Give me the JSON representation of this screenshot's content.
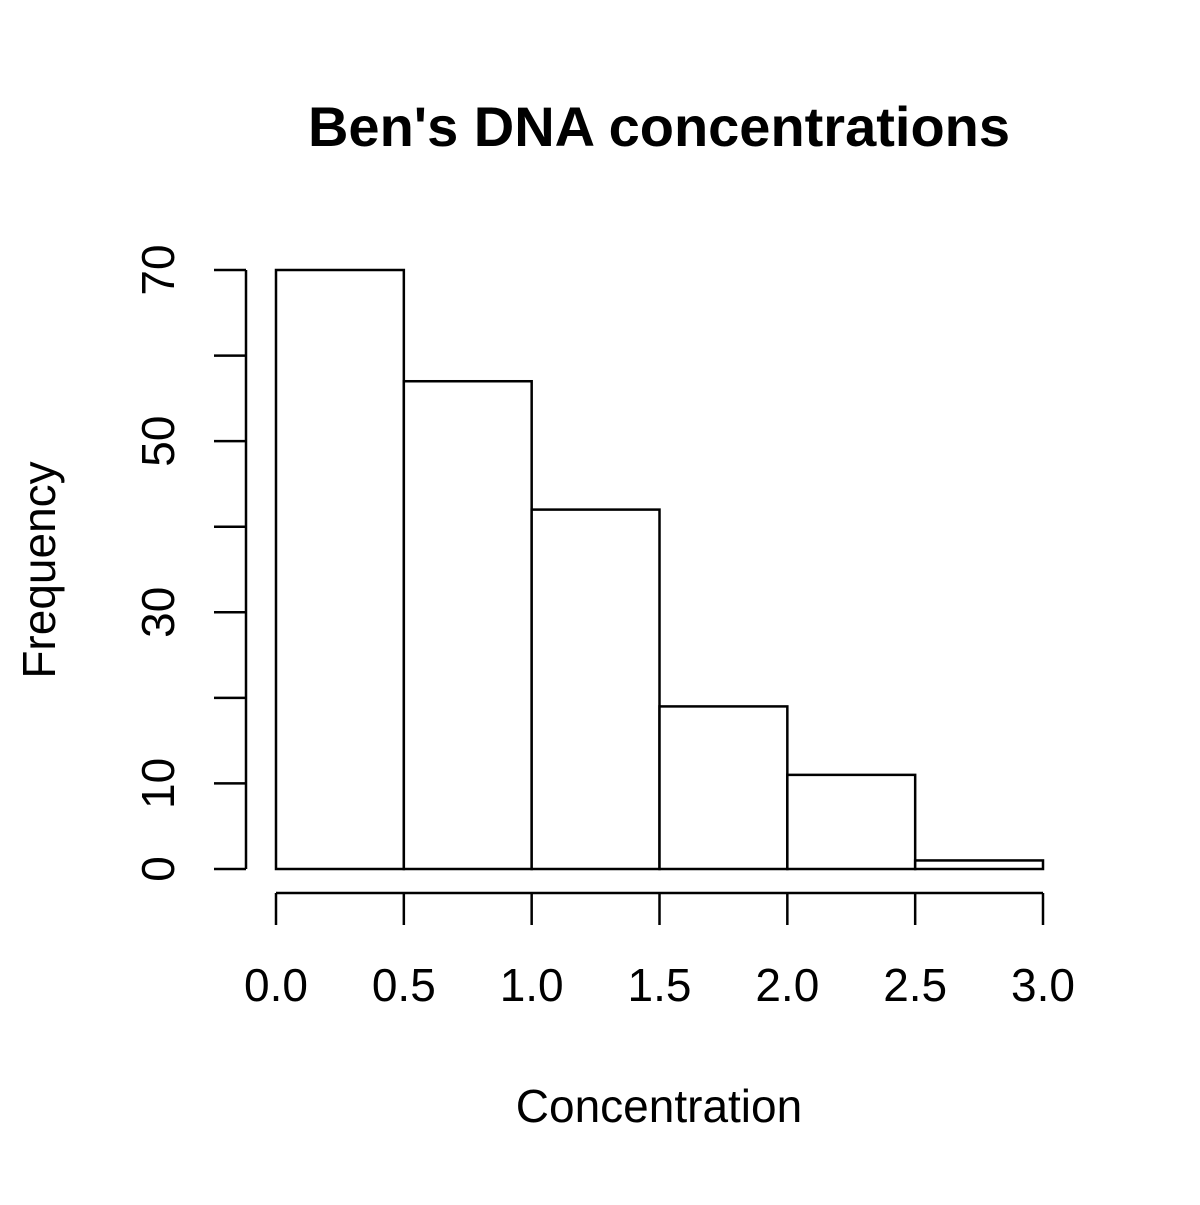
{
  "chart_data": {
    "type": "bar",
    "title": "Ben's DNA concentrations",
    "xlabel": "Concentration",
    "ylabel": "Frequency",
    "bins": [
      {
        "start": 0.0,
        "end": 0.5,
        "count": 70
      },
      {
        "start": 0.5,
        "end": 1.0,
        "count": 57
      },
      {
        "start": 1.0,
        "end": 1.5,
        "count": 42
      },
      {
        "start": 1.5,
        "end": 2.0,
        "count": 19
      },
      {
        "start": 2.0,
        "end": 2.5,
        "count": 11
      },
      {
        "start": 2.5,
        "end": 3.0,
        "count": 1
      }
    ],
    "x_ticks": [
      0.0,
      0.5,
      1.0,
      1.5,
      2.0,
      2.5,
      3.0
    ],
    "x_tick_labels": [
      "0.0",
      "0.5",
      "1.0",
      "1.5",
      "2.0",
      "2.5",
      "3.0"
    ],
    "y_ticks": [
      0,
      10,
      20,
      30,
      40,
      50,
      60,
      70
    ],
    "y_tick_labels": [
      "0",
      "10",
      "",
      "30",
      "",
      "50",
      "",
      "70"
    ],
    "xlim": [
      0.0,
      3.0
    ],
    "ylim": [
      0,
      70
    ],
    "grid": false,
    "legend": "none",
    "bar_fill": "#ffffff",
    "bar_stroke": "#000000"
  }
}
